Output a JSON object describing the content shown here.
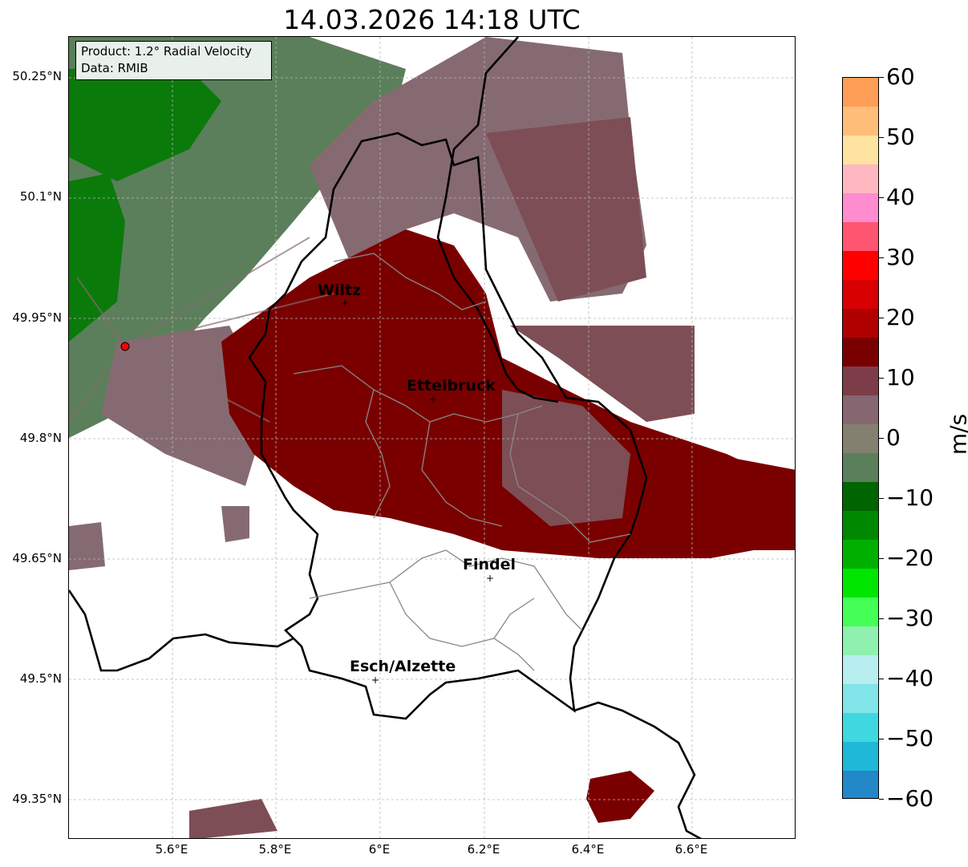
{
  "title": "14.03.2026 14:18 UTC",
  "info_box": {
    "product": "Product: 1.2° Radial Velocity",
    "data": "Data: RMIB"
  },
  "y_ticks": [
    "50.25°N",
    "50.1°N",
    "49.95°N",
    "49.8°N",
    "49.65°N",
    "49.5°N",
    "49.35°N"
  ],
  "x_ticks": [
    "5.6°E",
    "5.8°E",
    "6°E",
    "6.2°E",
    "6.4°E",
    "6.6°E"
  ],
  "colorbar": {
    "label": "m/s",
    "ticks": [
      "60",
      "50",
      "40",
      "30",
      "20",
      "10",
      "0",
      "−10",
      "−20",
      "−30",
      "−40",
      "−50",
      "−60"
    ],
    "range": [
      -60,
      60
    ],
    "colors_top_to_bottom": [
      "#ff9e56",
      "#ffbd7a",
      "#ffe3a0",
      "#ffb8c0",
      "#ff8ccf",
      "#ff5570",
      "#ff0000",
      "#d80000",
      "#b00000",
      "#7a0000",
      "#7d3d48",
      "#866670",
      "#838070",
      "#5b7f5a",
      "#006400",
      "#008800",
      "#00b000",
      "#00e600",
      "#44ff55",
      "#90f0b0",
      "#b8eef0",
      "#80e4e8",
      "#40d8e0",
      "#20b8d8",
      "#2288c8"
    ]
  },
  "cities": [
    {
      "name": "Wiltz"
    },
    {
      "name": "Ettelbruck"
    },
    {
      "name": "Findel"
    },
    {
      "name": "Esch/Alzette"
    }
  ],
  "colors": {
    "outbound_strong": "#7a0000",
    "outbound_weak": "#7d4e55",
    "near_zero": "#866a72",
    "inbound_weak": "#5b7f5a",
    "inbound_strong": "#0a7a0a",
    "radar_site": "#ff0000"
  }
}
